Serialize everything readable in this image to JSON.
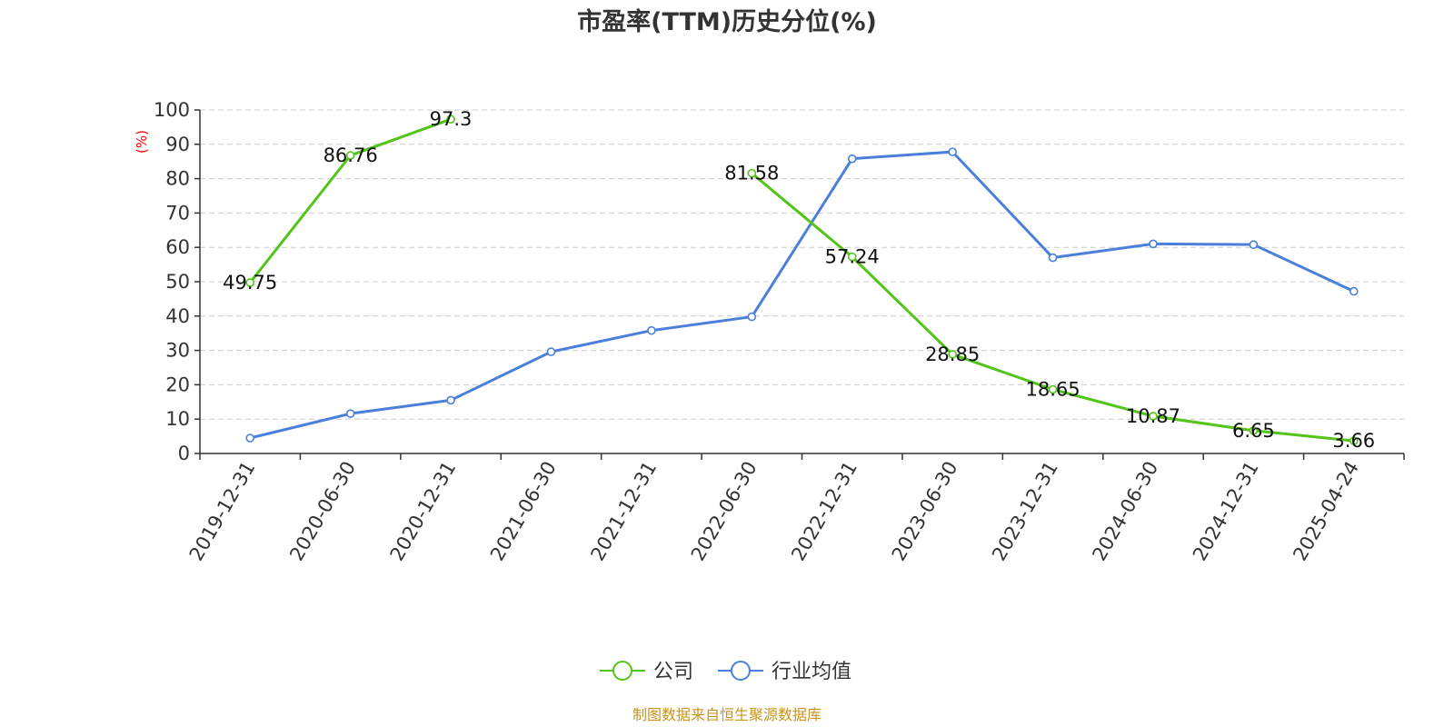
{
  "colors": {
    "company": "#52c41a",
    "industry": "#4a7fdb",
    "ylabel": "#ff0000",
    "source": "#c8941e",
    "grid": "#cccccc",
    "axis": "#333333"
  },
  "source_text": "制图数据来自恒生聚源数据库",
  "chart_data": {
    "type": "line",
    "title": "市盈率(TTM)历史分位(%)",
    "ylabel": "(%)",
    "xlabel": "",
    "ylim": [
      0,
      100
    ],
    "yticks": [
      0,
      10,
      20,
      30,
      40,
      50,
      60,
      70,
      80,
      90,
      100
    ],
    "categories": [
      "2019-12-31",
      "2020-06-30",
      "2020-12-31",
      "2021-06-30",
      "2021-12-31",
      "2022-06-30",
      "2022-12-31",
      "2023-06-30",
      "2023-12-31",
      "2024-06-30",
      "2024-12-31",
      "2025-04-24"
    ],
    "grid": true,
    "legend_position": "bottom",
    "series": [
      {
        "name": "公司",
        "color_key": "company",
        "values": [
          49.75,
          86.76,
          97.3,
          null,
          null,
          81.58,
          57.24,
          28.85,
          18.65,
          10.87,
          6.65,
          3.66
        ],
        "labels": [
          "49.75",
          "86.76",
          "97.3",
          "",
          "",
          "81.58",
          "57.24",
          "28.85",
          "18.65",
          "10.87",
          "6.65",
          "3.66"
        ]
      },
      {
        "name": "行业均值",
        "color_key": "industry",
        "values": [
          4.5,
          11.6,
          15.5,
          29.6,
          35.8,
          39.8,
          85.8,
          87.8,
          57,
          61,
          60.8,
          47.2
        ],
        "labels": []
      }
    ]
  }
}
